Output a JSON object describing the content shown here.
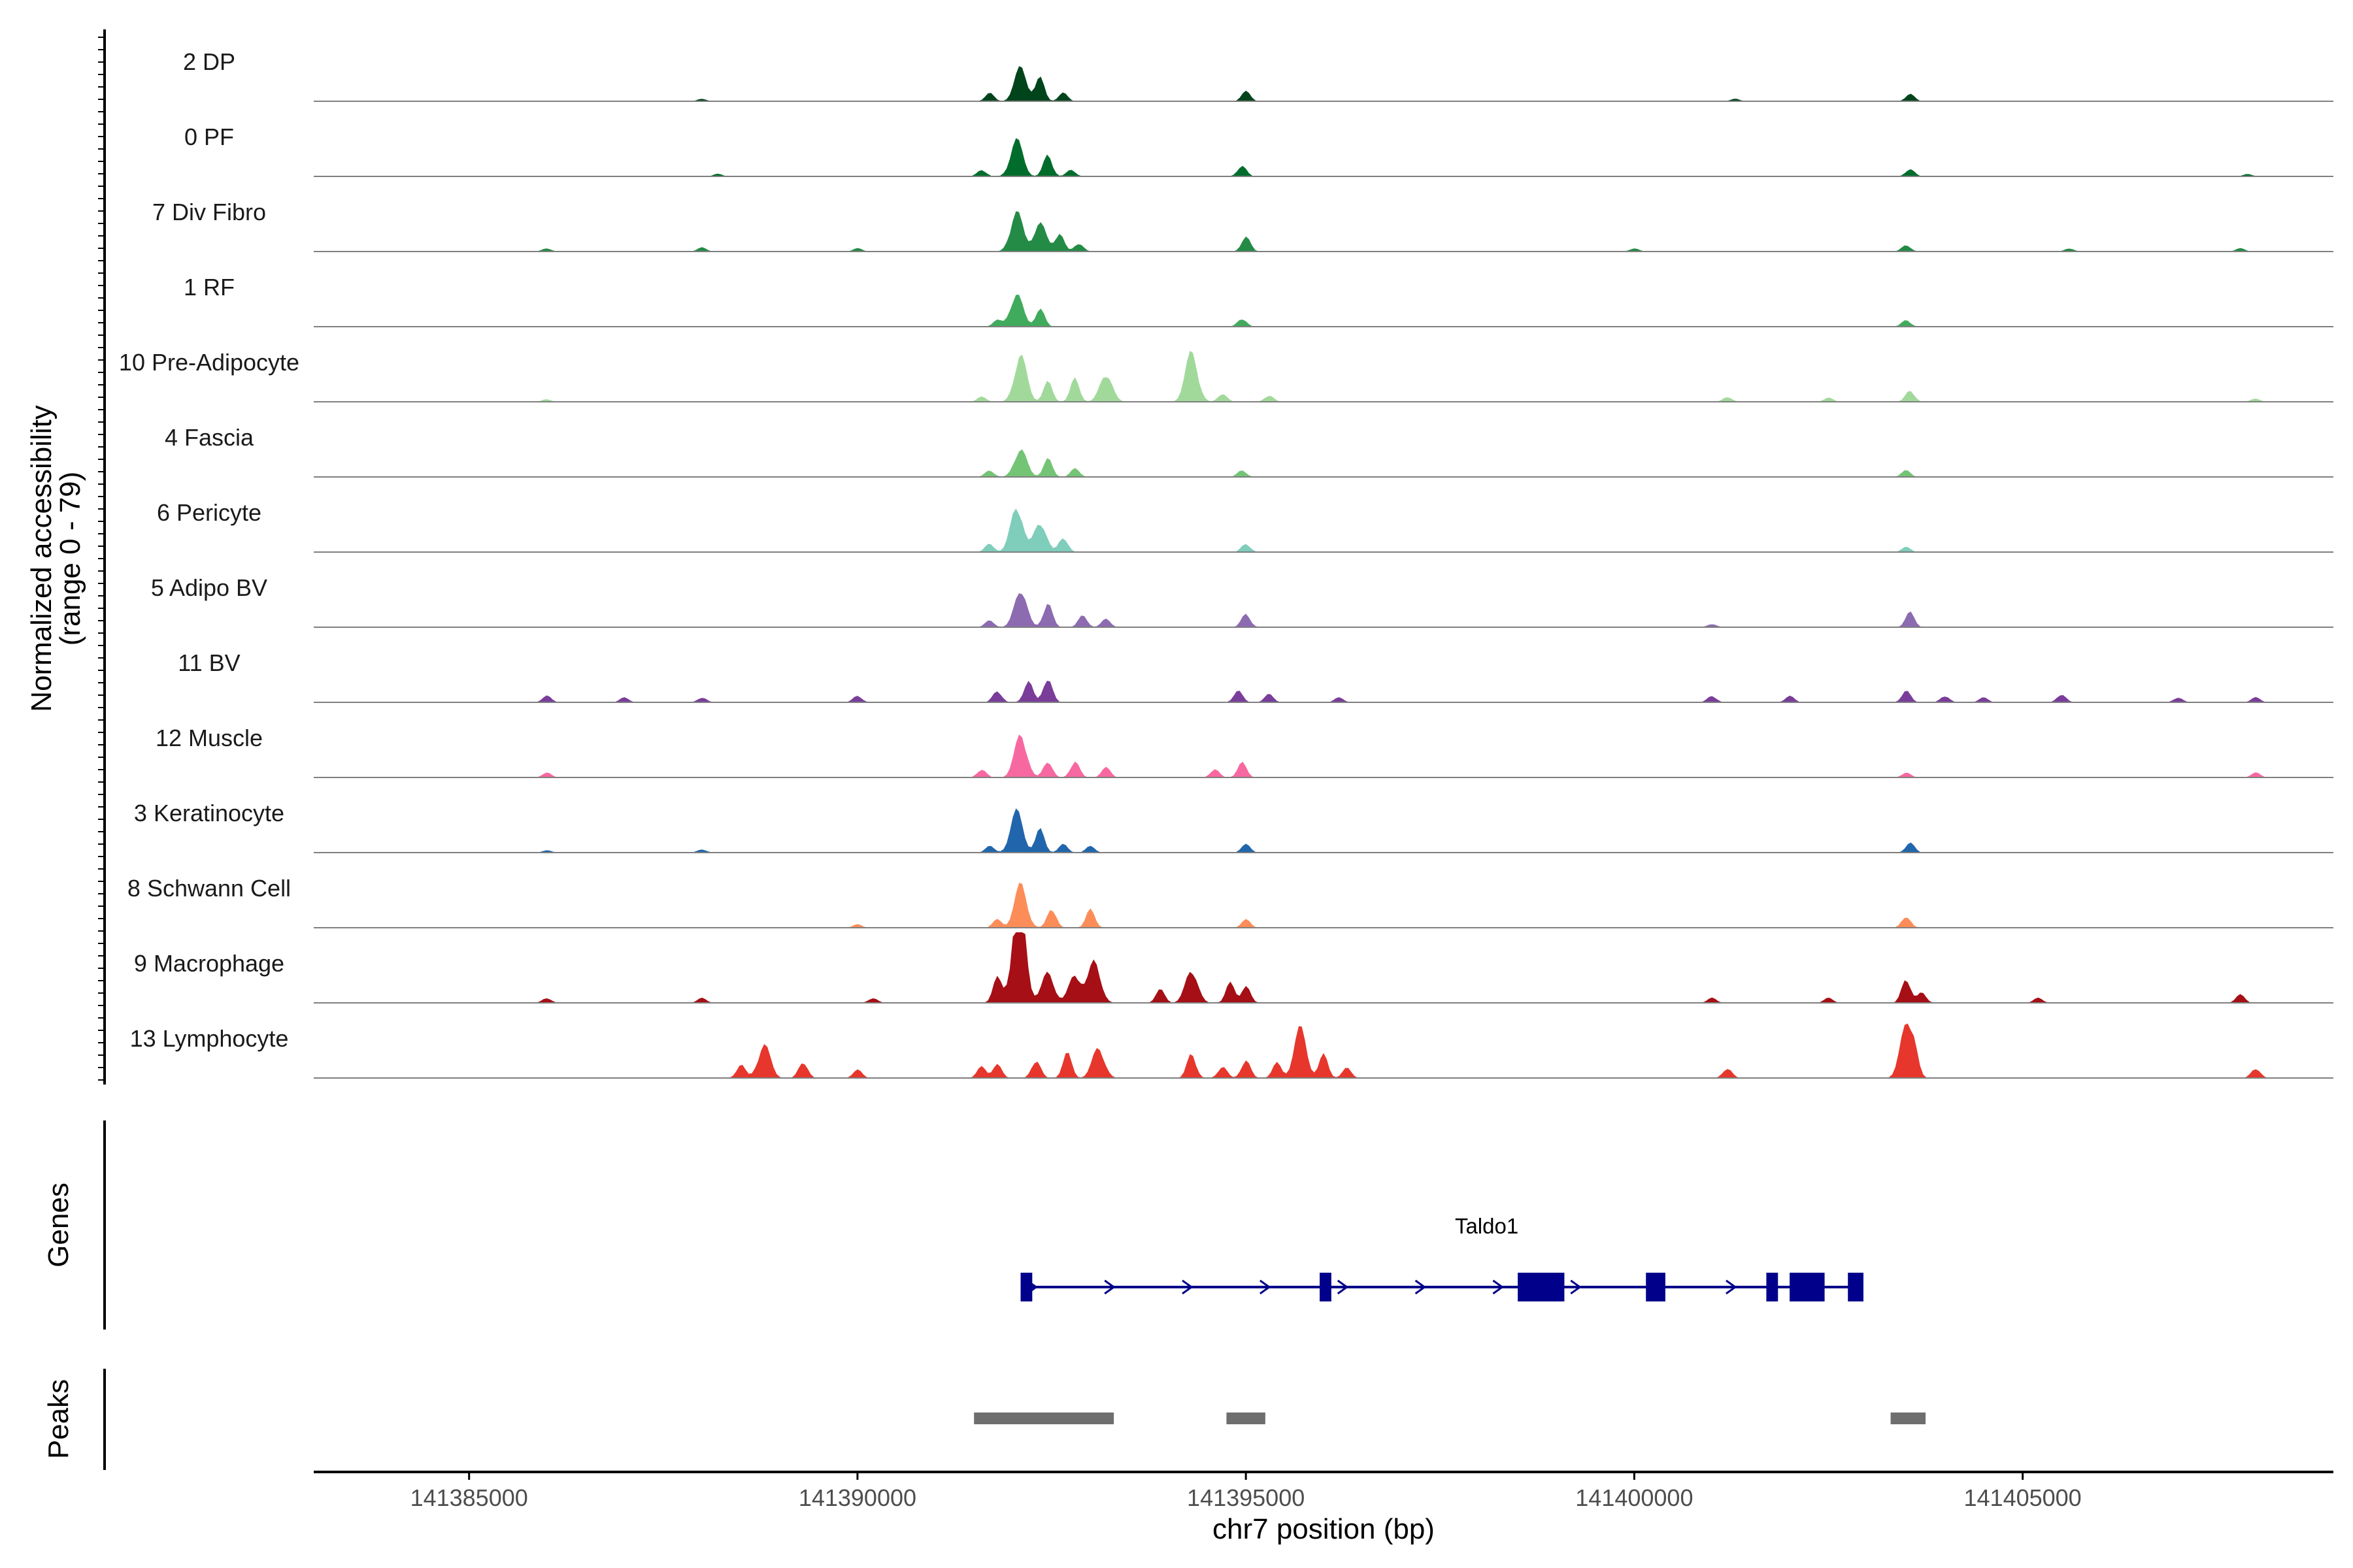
{
  "chart_data": {
    "type": "area",
    "title": "",
    "chromosome": "chr7",
    "xlabel": "chr7 position (bp)",
    "xlim": [
      141383000,
      141409000
    ],
    "xticks": [
      141385000,
      141390000,
      141395000,
      141400000,
      141405000
    ],
    "xtick_labels": [
      "141385000",
      "141390000",
      "141395000",
      "141400000",
      "141405000"
    ],
    "ylabel_line1": "Normalized accessibility",
    "ylabel_line2": "(range 0 - 79)",
    "ylim": [
      0,
      79
    ],
    "genes_label": "Genes",
    "peaks_label": "Peaks",
    "series": [
      {
        "name": "2 DP",
        "color": "#00441b",
        "peaks": [
          [
            141392100,
            41
          ],
          [
            141392350,
            28
          ],
          [
            141391700,
            10
          ],
          [
            141392650,
            10
          ],
          [
            141395000,
            12
          ],
          [
            141403550,
            9
          ],
          [
            141388000,
            3
          ],
          [
            141401300,
            3
          ]
        ]
      },
      {
        "name": "0 PF",
        "color": "#006d2c",
        "peaks": [
          [
            141392050,
            44
          ],
          [
            141392450,
            26
          ],
          [
            141392750,
            8
          ],
          [
            141391600,
            8
          ],
          [
            141394950,
            13
          ],
          [
            141403550,
            9
          ],
          [
            141388200,
            3
          ],
          [
            141407900,
            3
          ]
        ]
      },
      {
        "name": "7 Div Fibro",
        "color": "#238b45",
        "peaks": [
          [
            141392050,
            48
          ],
          [
            141392350,
            34
          ],
          [
            141392600,
            22
          ],
          [
            141392850,
            10
          ],
          [
            141395000,
            18
          ],
          [
            141388000,
            5
          ],
          [
            141386000,
            4
          ],
          [
            141390000,
            4
          ],
          [
            141403500,
            8
          ],
          [
            141405600,
            4
          ],
          [
            141407800,
            4
          ],
          [
            141400000,
            4
          ]
        ]
      },
      {
        "name": "1 RF",
        "color": "#41ab5d",
        "peaks": [
          [
            141392050,
            40
          ],
          [
            141392350,
            22
          ],
          [
            141391800,
            8
          ],
          [
            141394950,
            10
          ],
          [
            141403500,
            8
          ]
        ]
      },
      {
        "name": "10 Pre-Adipocyte",
        "color": "#a1d99b",
        "peaks": [
          [
            141392100,
            56
          ],
          [
            141392450,
            24
          ],
          [
            141392800,
            28
          ],
          [
            141393200,
            34
          ],
          [
            141394300,
            60
          ],
          [
            141394700,
            10
          ],
          [
            141395300,
            8
          ],
          [
            141391600,
            6
          ],
          [
            141403550,
            14
          ],
          [
            141401200,
            6
          ],
          [
            141402500,
            5
          ],
          [
            141386000,
            3
          ],
          [
            141408000,
            4
          ]
        ]
      },
      {
        "name": "4 Fascia",
        "color": "#74c476",
        "peaks": [
          [
            141392100,
            34
          ],
          [
            141392450,
            22
          ],
          [
            141392800,
            10
          ],
          [
            141391700,
            8
          ],
          [
            141394950,
            8
          ],
          [
            141403500,
            8
          ]
        ]
      },
      {
        "name": "6 Pericyte",
        "color": "#7fcdbb",
        "peaks": [
          [
            141392050,
            56
          ],
          [
            141392350,
            36
          ],
          [
            141392650,
            18
          ],
          [
            141391700,
            10
          ],
          [
            141395000,
            10
          ],
          [
            141403500,
            6
          ]
        ]
      },
      {
        "name": "5 Adipo BV",
        "color": "#8c6bb1",
        "peaks": [
          [
            141392100,
            46
          ],
          [
            141392450,
            30
          ],
          [
            141392900,
            14
          ],
          [
            141393200,
            10
          ],
          [
            141391700,
            8
          ],
          [
            141395000,
            16
          ],
          [
            141403550,
            18
          ],
          [
            141401000,
            4
          ]
        ]
      },
      {
        "name": "11 BV",
        "color": "#7a3d9a",
        "peaks": [
          [
            141392200,
            26
          ],
          [
            141392450,
            30
          ],
          [
            141391800,
            14
          ],
          [
            141390000,
            8
          ],
          [
            141386000,
            8
          ],
          [
            141387000,
            6
          ],
          [
            141388000,
            6
          ],
          [
            141394900,
            14
          ],
          [
            141395300,
            10
          ],
          [
            141396200,
            6
          ],
          [
            141401000,
            8
          ],
          [
            141402000,
            8
          ],
          [
            141403500,
            14
          ],
          [
            141404000,
            8
          ],
          [
            141404500,
            6
          ],
          [
            141405500,
            10
          ],
          [
            141407000,
            6
          ],
          [
            141408000,
            6
          ]
        ]
      },
      {
        "name": "12 Muscle",
        "color": "#f768a1",
        "peaks": [
          [
            141392100,
            52
          ],
          [
            141392450,
            20
          ],
          [
            141392800,
            20
          ],
          [
            141393200,
            12
          ],
          [
            141391600,
            10
          ],
          [
            141394950,
            18
          ],
          [
            141394600,
            10
          ],
          [
            141386000,
            6
          ],
          [
            141403500,
            6
          ],
          [
            141408000,
            6
          ]
        ]
      },
      {
        "name": "3 Keratinocyte",
        "color": "#2166ac",
        "peaks": [
          [
            141392050,
            50
          ],
          [
            141392350,
            28
          ],
          [
            141392650,
            10
          ],
          [
            141393000,
            8
          ],
          [
            141391700,
            8
          ],
          [
            141395000,
            10
          ],
          [
            141403550,
            12
          ],
          [
            141388000,
            4
          ],
          [
            141386000,
            3
          ]
        ]
      },
      {
        "name": "8 Schwann Cell",
        "color": "#fc8d59",
        "peaks": [
          [
            141392100,
            52
          ],
          [
            141392500,
            24
          ],
          [
            141393000,
            22
          ],
          [
            141391800,
            10
          ],
          [
            141395000,
            10
          ],
          [
            141403500,
            14
          ],
          [
            141390000,
            4
          ]
        ]
      },
      {
        "name": "9 Macrophage",
        "color": "#a50f15",
        "peaks": [
          [
            141392100,
            78
          ],
          [
            141392450,
            36
          ],
          [
            141392800,
            34
          ],
          [
            141392050,
            60
          ],
          [
            141393050,
            50
          ],
          [
            141391800,
            30
          ],
          [
            141394300,
            40
          ],
          [
            141393900,
            16
          ],
          [
            141394800,
            24
          ],
          [
            141395000,
            20
          ],
          [
            141390200,
            6
          ],
          [
            141386000,
            6
          ],
          [
            141388000,
            6
          ],
          [
            141403500,
            30
          ],
          [
            141403700,
            12
          ],
          [
            141401000,
            6
          ],
          [
            141402500,
            6
          ],
          [
            141405200,
            6
          ],
          [
            141407800,
            10
          ]
        ]
      },
      {
        "name": "13 Lymphocyte",
        "color": "#e7362c",
        "peaks": [
          [
            141388800,
            40
          ],
          [
            141389300,
            20
          ],
          [
            141388500,
            16
          ],
          [
            141391800,
            16
          ],
          [
            141392300,
            22
          ],
          [
            141392700,
            30
          ],
          [
            141393100,
            36
          ],
          [
            141391600,
            14
          ],
          [
            141390000,
            10
          ],
          [
            141394300,
            30
          ],
          [
            141394700,
            14
          ],
          [
            141395000,
            22
          ],
          [
            141395400,
            18
          ],
          [
            141395700,
            60
          ],
          [
            141396000,
            28
          ],
          [
            141396300,
            12
          ],
          [
            141401200,
            12
          ],
          [
            141403500,
            62
          ],
          [
            141403600,
            26
          ],
          [
            141408000,
            12
          ]
        ]
      }
    ],
    "gene": {
      "name": "Taldo1",
      "start": 141392100,
      "end": 141402900,
      "strand": "+",
      "exons": [
        [
          141392100,
          141392250
        ],
        [
          141395950,
          141396100
        ],
        [
          141398500,
          141399100
        ],
        [
          141400150,
          141400400
        ],
        [
          141401700,
          141401850
        ],
        [
          141402000,
          141402450
        ],
        [
          141402750,
          141402950
        ]
      ]
    },
    "peaks": [
      [
        141391500,
        141393300
      ],
      [
        141394750,
        141395250
      ],
      [
        141403300,
        141403750
      ]
    ]
  }
}
